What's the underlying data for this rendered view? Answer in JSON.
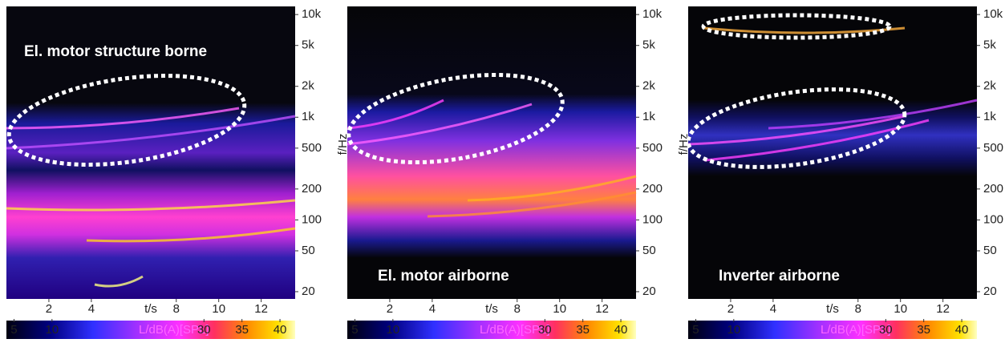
{
  "chart_data": [
    {
      "type": "spectrogram",
      "annotation": "El. motor structure borne",
      "annotation_corner": "top-left",
      "xlabel": "t/s",
      "ylabel": "f/Hz",
      "xlim": [
        0,
        13.6
      ],
      "xticks": [
        2,
        4,
        8,
        10,
        12
      ],
      "ylim": [
        17,
        12000
      ],
      "log_y": true,
      "yticks": [
        20,
        50,
        100,
        200,
        500,
        {
          "value": 1000,
          "label": "1k"
        },
        {
          "value": 2000,
          "label": "2k"
        },
        {
          "value": 5000,
          "label": "5k"
        },
        {
          "value": 10000,
          "label": "10k"
        }
      ],
      "colorbar_label": "L/dB(A)[SPL]",
      "clim": [
        4,
        42
      ],
      "cticks": [
        5,
        10,
        30,
        35,
        40
      ]
    },
    {
      "type": "spectrogram",
      "annotation": "El. motor airborne",
      "annotation_corner": "bottom-left",
      "xlabel": "t/s",
      "ylabel": "f/Hz",
      "xlim": [
        0,
        13.6
      ],
      "xticks": [
        2,
        4,
        8,
        10,
        12
      ],
      "ylim": [
        17,
        12000
      ],
      "log_y": true,
      "yticks": [
        20,
        50,
        100,
        200,
        500,
        {
          "value": 1000,
          "label": "1k"
        },
        {
          "value": 2000,
          "label": "2k"
        },
        {
          "value": 5000,
          "label": "5k"
        },
        {
          "value": 10000,
          "label": "10k"
        }
      ],
      "colorbar_label": "L/dB(A)[SPL]",
      "clim": [
        4,
        42
      ],
      "cticks": [
        5,
        10,
        30,
        35,
        40
      ]
    },
    {
      "type": "spectrogram",
      "annotation": "Inverter airborne",
      "annotation_corner": "bottom-left",
      "xlabel": "t/s",
      "ylabel": "f/Hz",
      "xlim": [
        0,
        13.6
      ],
      "xticks": [
        2,
        4,
        8,
        10,
        12
      ],
      "ylim": [
        17,
        12000
      ],
      "log_y": true,
      "yticks": [
        20,
        50,
        100,
        200,
        500,
        {
          "value": 1000,
          "label": "1k"
        },
        {
          "value": 2000,
          "label": "2k"
        },
        {
          "value": 5000,
          "label": "5k"
        },
        {
          "value": 10000,
          "label": "10k"
        }
      ],
      "colorbar_label": "L/dB(A)[SPL]",
      "clim": [
        4,
        42
      ],
      "cticks": [
        5,
        10,
        30,
        35,
        40
      ]
    }
  ]
}
